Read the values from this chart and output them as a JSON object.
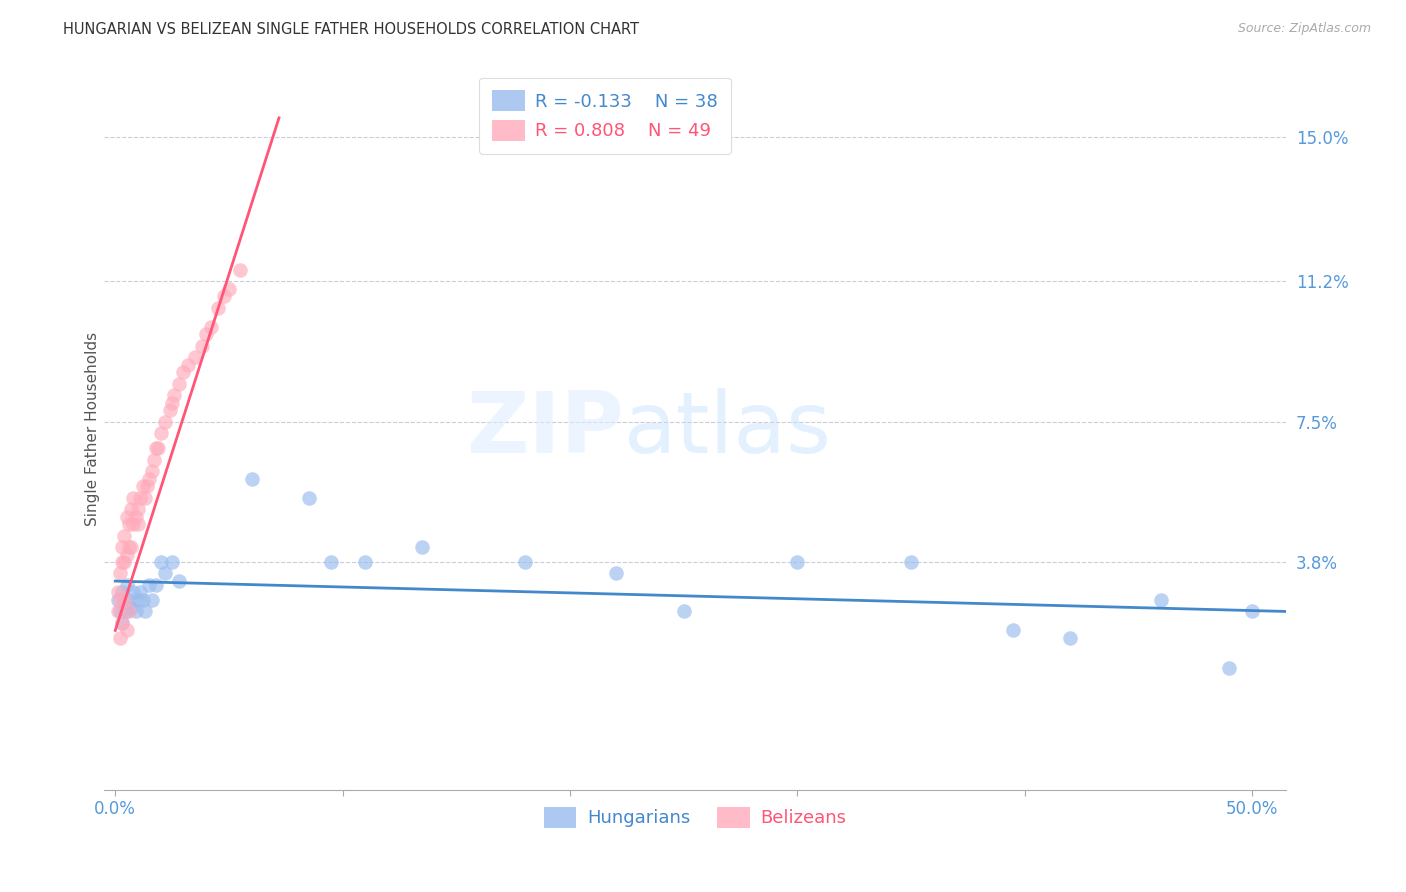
{
  "title": "HUNGARIAN VS BELIZEAN SINGLE FATHER HOUSEHOLDS CORRELATION CHART",
  "source": "Source: ZipAtlas.com",
  "ylabel": "Single Father Households",
  "ytick_labels": [
    "15.0%",
    "11.2%",
    "7.5%",
    "3.8%"
  ],
  "ytick_values": [
    0.15,
    0.112,
    0.075,
    0.038
  ],
  "xtick_values": [
    0.0,
    0.1,
    0.2,
    0.3,
    0.4,
    0.5
  ],
  "xtick_labels": [
    "0.0%",
    "",
    "",
    "",
    "",
    "50.0%"
  ],
  "xlim": [
    -0.005,
    0.515
  ],
  "ylim": [
    -0.022,
    0.168
  ],
  "hungarian_color": "#99BBEE",
  "belizean_color": "#FFAABB",
  "hungarian_line_color": "#4488CC",
  "belizean_line_color": "#FF5577",
  "legend_R_hungarian": "R = -0.133",
  "legend_N_hungarian": "N = 38",
  "legend_R_belizean": "R = 0.808",
  "legend_N_belizean": "N = 49",
  "grid_color": "#CCCCDD",
  "watermark_zip": "ZIP",
  "watermark_atlas": "atlas",
  "hun_x": [
    0.001,
    0.002,
    0.003,
    0.003,
    0.004,
    0.004,
    0.005,
    0.005,
    0.006,
    0.007,
    0.008,
    0.009,
    0.01,
    0.011,
    0.012,
    0.013,
    0.015,
    0.016,
    0.018,
    0.02,
    0.022,
    0.025,
    0.028,
    0.06,
    0.085,
    0.095,
    0.11,
    0.135,
    0.18,
    0.22,
    0.25,
    0.3,
    0.35,
    0.395,
    0.42,
    0.46,
    0.49,
    0.5
  ],
  "hun_y": [
    0.028,
    0.025,
    0.03,
    0.022,
    0.028,
    0.025,
    0.032,
    0.025,
    0.028,
    0.026,
    0.03,
    0.025,
    0.028,
    0.03,
    0.028,
    0.025,
    0.032,
    0.028,
    0.032,
    0.038,
    0.035,
    0.038,
    0.033,
    0.06,
    0.055,
    0.038,
    0.038,
    0.042,
    0.038,
    0.035,
    0.025,
    0.038,
    0.038,
    0.02,
    0.018,
    0.028,
    0.01,
    0.025
  ],
  "bel_x": [
    0.001,
    0.002,
    0.002,
    0.003,
    0.003,
    0.004,
    0.004,
    0.005,
    0.005,
    0.006,
    0.006,
    0.007,
    0.007,
    0.008,
    0.008,
    0.009,
    0.01,
    0.01,
    0.011,
    0.012,
    0.013,
    0.014,
    0.015,
    0.016,
    0.017,
    0.018,
    0.019,
    0.02,
    0.022,
    0.024,
    0.025,
    0.026,
    0.028,
    0.03,
    0.032,
    0.035,
    0.038,
    0.04,
    0.042,
    0.045,
    0.048,
    0.05,
    0.055,
    0.001,
    0.002,
    0.003,
    0.004,
    0.005,
    0.006
  ],
  "bel_y": [
    0.03,
    0.028,
    0.035,
    0.038,
    0.042,
    0.045,
    0.038,
    0.05,
    0.04,
    0.048,
    0.042,
    0.052,
    0.042,
    0.055,
    0.048,
    0.05,
    0.052,
    0.048,
    0.055,
    0.058,
    0.055,
    0.058,
    0.06,
    0.062,
    0.065,
    0.068,
    0.068,
    0.072,
    0.075,
    0.078,
    0.08,
    0.082,
    0.085,
    0.088,
    0.09,
    0.092,
    0.095,
    0.098,
    0.1,
    0.105,
    0.108,
    0.11,
    0.115,
    0.025,
    0.018,
    0.022,
    0.028,
    0.02,
    0.025
  ],
  "hun_line_x": [
    0.0,
    0.515
  ],
  "hun_line_y": [
    0.033,
    0.025
  ],
  "bel_line_x": [
    0.0,
    0.072
  ],
  "bel_line_y": [
    0.02,
    0.155
  ]
}
